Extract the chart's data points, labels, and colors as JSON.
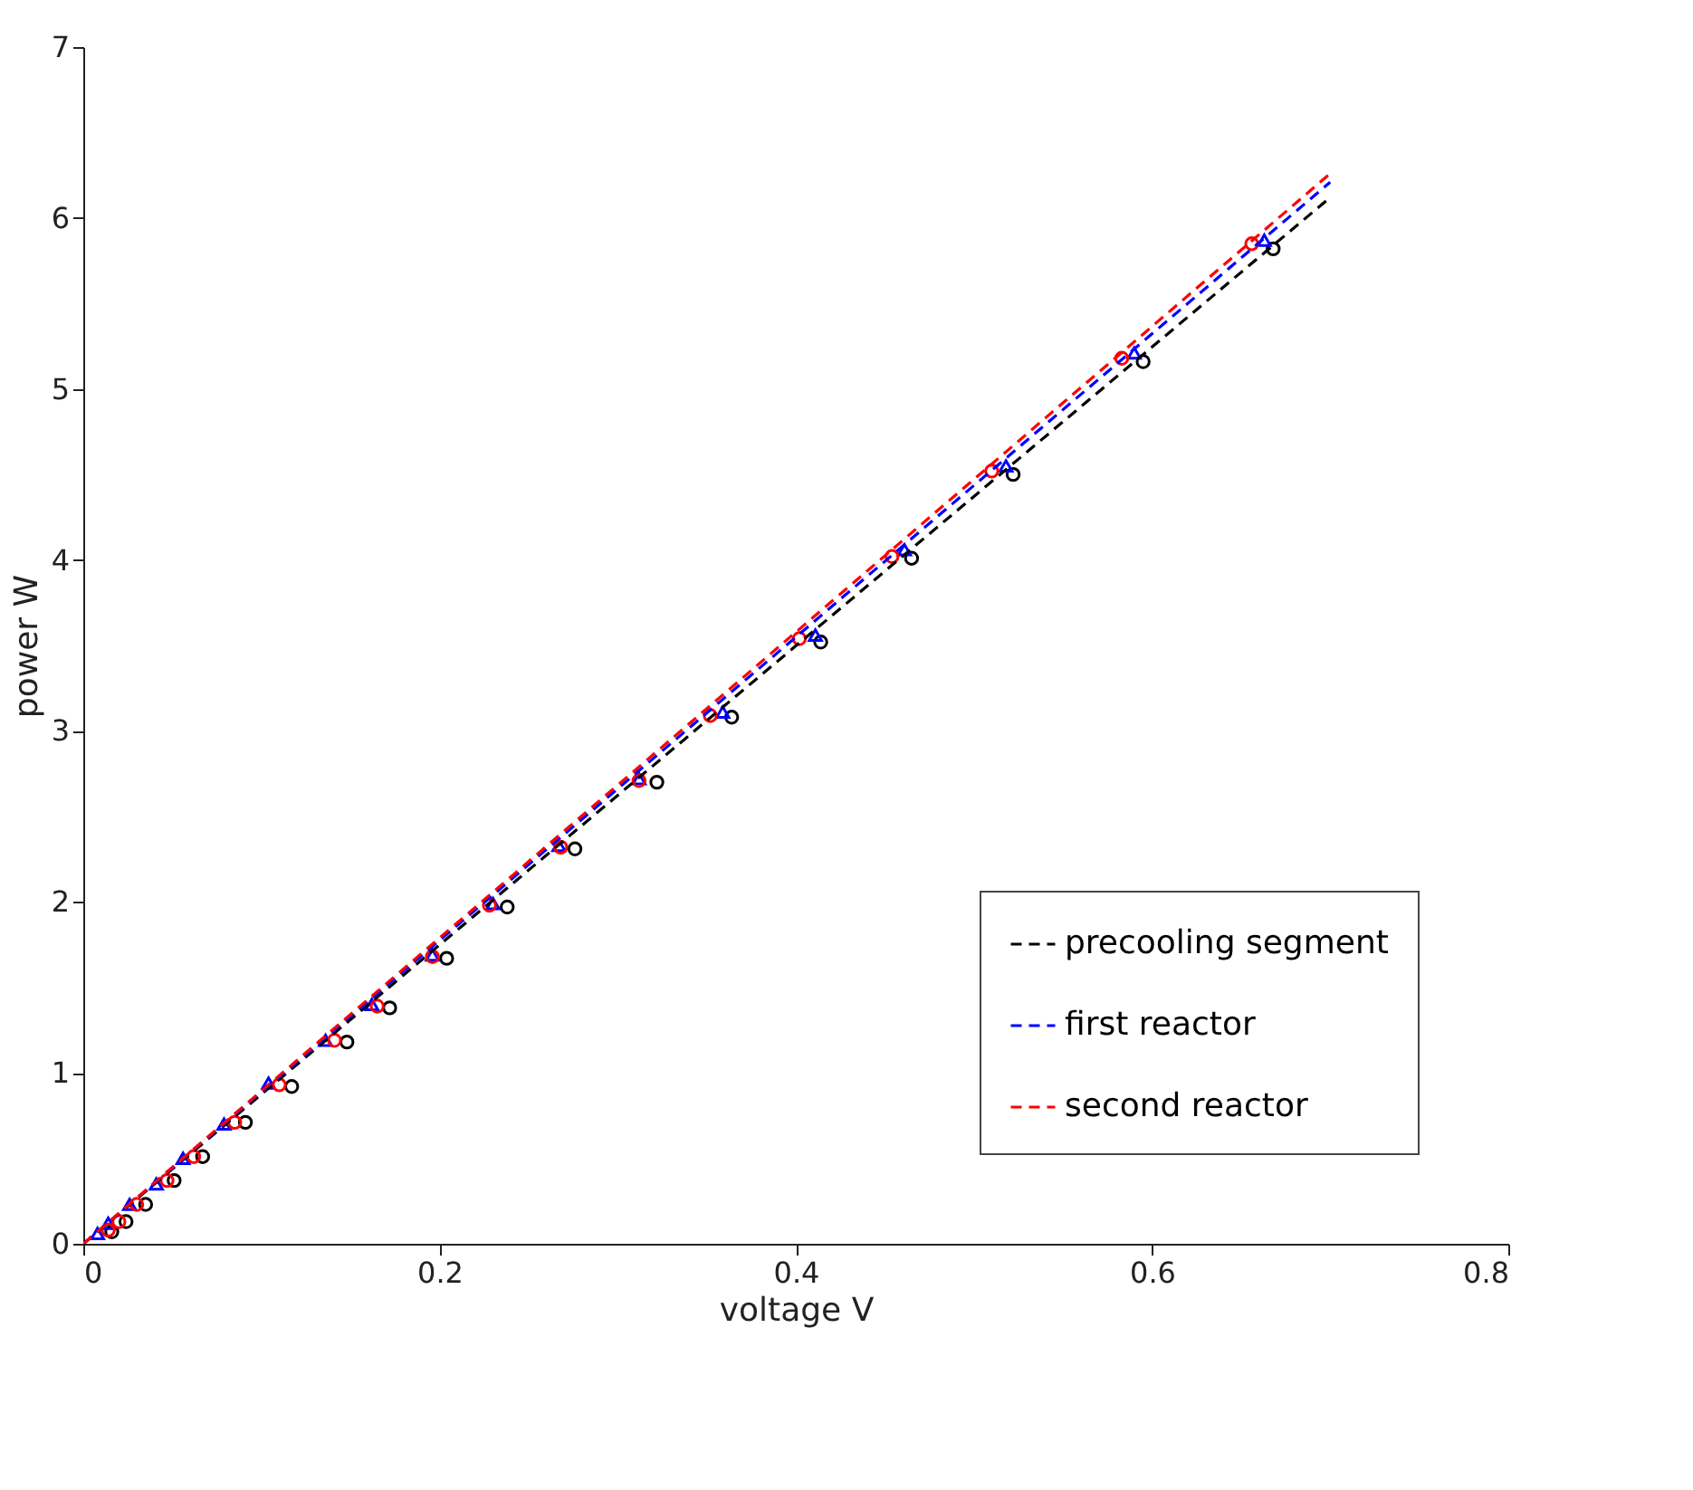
{
  "chart_data": {
    "type": "scatter",
    "xlabel": "voltage V",
    "ylabel": "power W",
    "xlim": [
      0,
      0.8
    ],
    "ylim": [
      0,
      7
    ],
    "xticks": [
      0,
      0.2,
      0.4,
      0.6,
      0.8
    ],
    "yticks": [
      0,
      1,
      2,
      3,
      4,
      5,
      6,
      7
    ],
    "grid": false,
    "legend": "bottom right",
    "series": [
      {
        "color": "#000000",
        "marker": "circle",
        "x": [
          0.668,
          0.595,
          0.522,
          0.465,
          0.414,
          0.364,
          0.322,
          0.276,
          0.238,
          0.204,
          0.172,
          0.148,
          0.117,
          0.091,
          0.067,
          0.051,
          0.035,
          0.024,
          0.016
        ],
        "values": [
          5.82,
          5.16,
          4.5,
          4.01,
          3.52,
          3.08,
          2.7,
          2.31,
          1.97,
          1.67,
          1.38,
          1.18,
          0.92,
          0.71,
          0.51,
          0.37,
          0.23,
          0.13,
          0.07
        ]
      },
      {
        "color": "#0000ff",
        "marker": "triangle",
        "x": [
          0.663,
          0.59,
          0.518,
          0.461,
          0.411,
          0.359,
          0.312,
          0.267,
          0.23,
          0.196,
          0.162,
          0.136,
          0.104,
          0.079,
          0.056,
          0.041,
          0.026,
          0.014,
          0.008
        ],
        "values": [
          5.87,
          5.21,
          4.55,
          4.06,
          3.56,
          3.11,
          2.72,
          2.33,
          1.99,
          1.69,
          1.4,
          1.19,
          0.94,
          0.7,
          0.5,
          0.35,
          0.23,
          0.12,
          0.06
        ]
      },
      {
        "color": "#ff0000",
        "marker": "circle",
        "x": [
          0.656,
          0.583,
          0.51,
          0.454,
          0.402,
          0.352,
          0.312,
          0.268,
          0.228,
          0.196,
          0.165,
          0.141,
          0.11,
          0.085,
          0.062,
          0.047,
          0.03,
          0.02,
          0.014
        ],
        "values": [
          5.85,
          5.18,
          4.52,
          4.02,
          3.54,
          3.09,
          2.71,
          2.32,
          1.98,
          1.68,
          1.39,
          1.19,
          0.93,
          0.71,
          0.51,
          0.37,
          0.23,
          0.13,
          0.08
        ]
      },
      {
        "type": "line",
        "name": "precooling segment",
        "color": "#000000",
        "line_style": "dashed",
        "marker": "none",
        "x": [
          0,
          0.7
        ],
        "values": [
          0,
          6.12
        ]
      },
      {
        "type": "line",
        "name": "first reactor",
        "color": "#0000ff",
        "line_style": "dashed",
        "marker": "none",
        "x": [
          0,
          0.7
        ],
        "values": [
          0,
          6.21
        ]
      },
      {
        "type": "line",
        "name": "second reactor",
        "color": "#ff0000",
        "line_style": "dashed",
        "marker": "none",
        "x": [
          0,
          0.7
        ],
        "values": [
          0,
          6.26
        ]
      }
    ]
  }
}
